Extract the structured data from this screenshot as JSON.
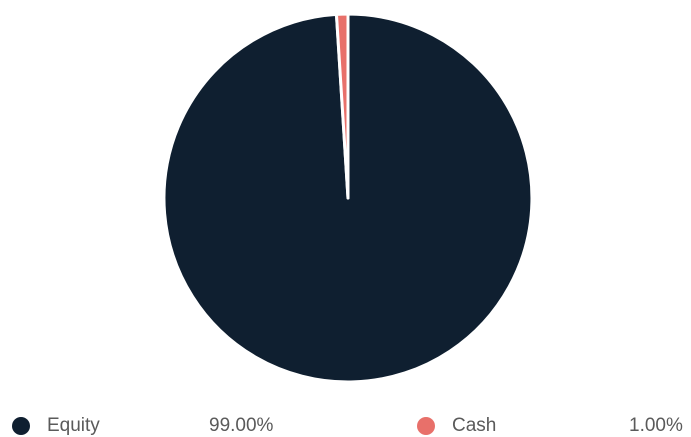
{
  "chart_data": {
    "type": "pie",
    "categories": [
      "Equity",
      "Cash"
    ],
    "values": [
      99.0,
      1.0
    ],
    "value_labels": [
      "99.00%",
      "1.00%"
    ],
    "colors": [
      "#0f1f30",
      "#e8706a"
    ],
    "start_angle_deg": 0,
    "direction": "clockwise",
    "slice_separator_color": "#ffffff",
    "legend_position": "bottom"
  },
  "legend": [
    {
      "label": "Equity",
      "value": "99.00%",
      "color": "#0f1f30"
    },
    {
      "label": "Cash",
      "value": "1.00%",
      "color": "#e8706a"
    }
  ]
}
